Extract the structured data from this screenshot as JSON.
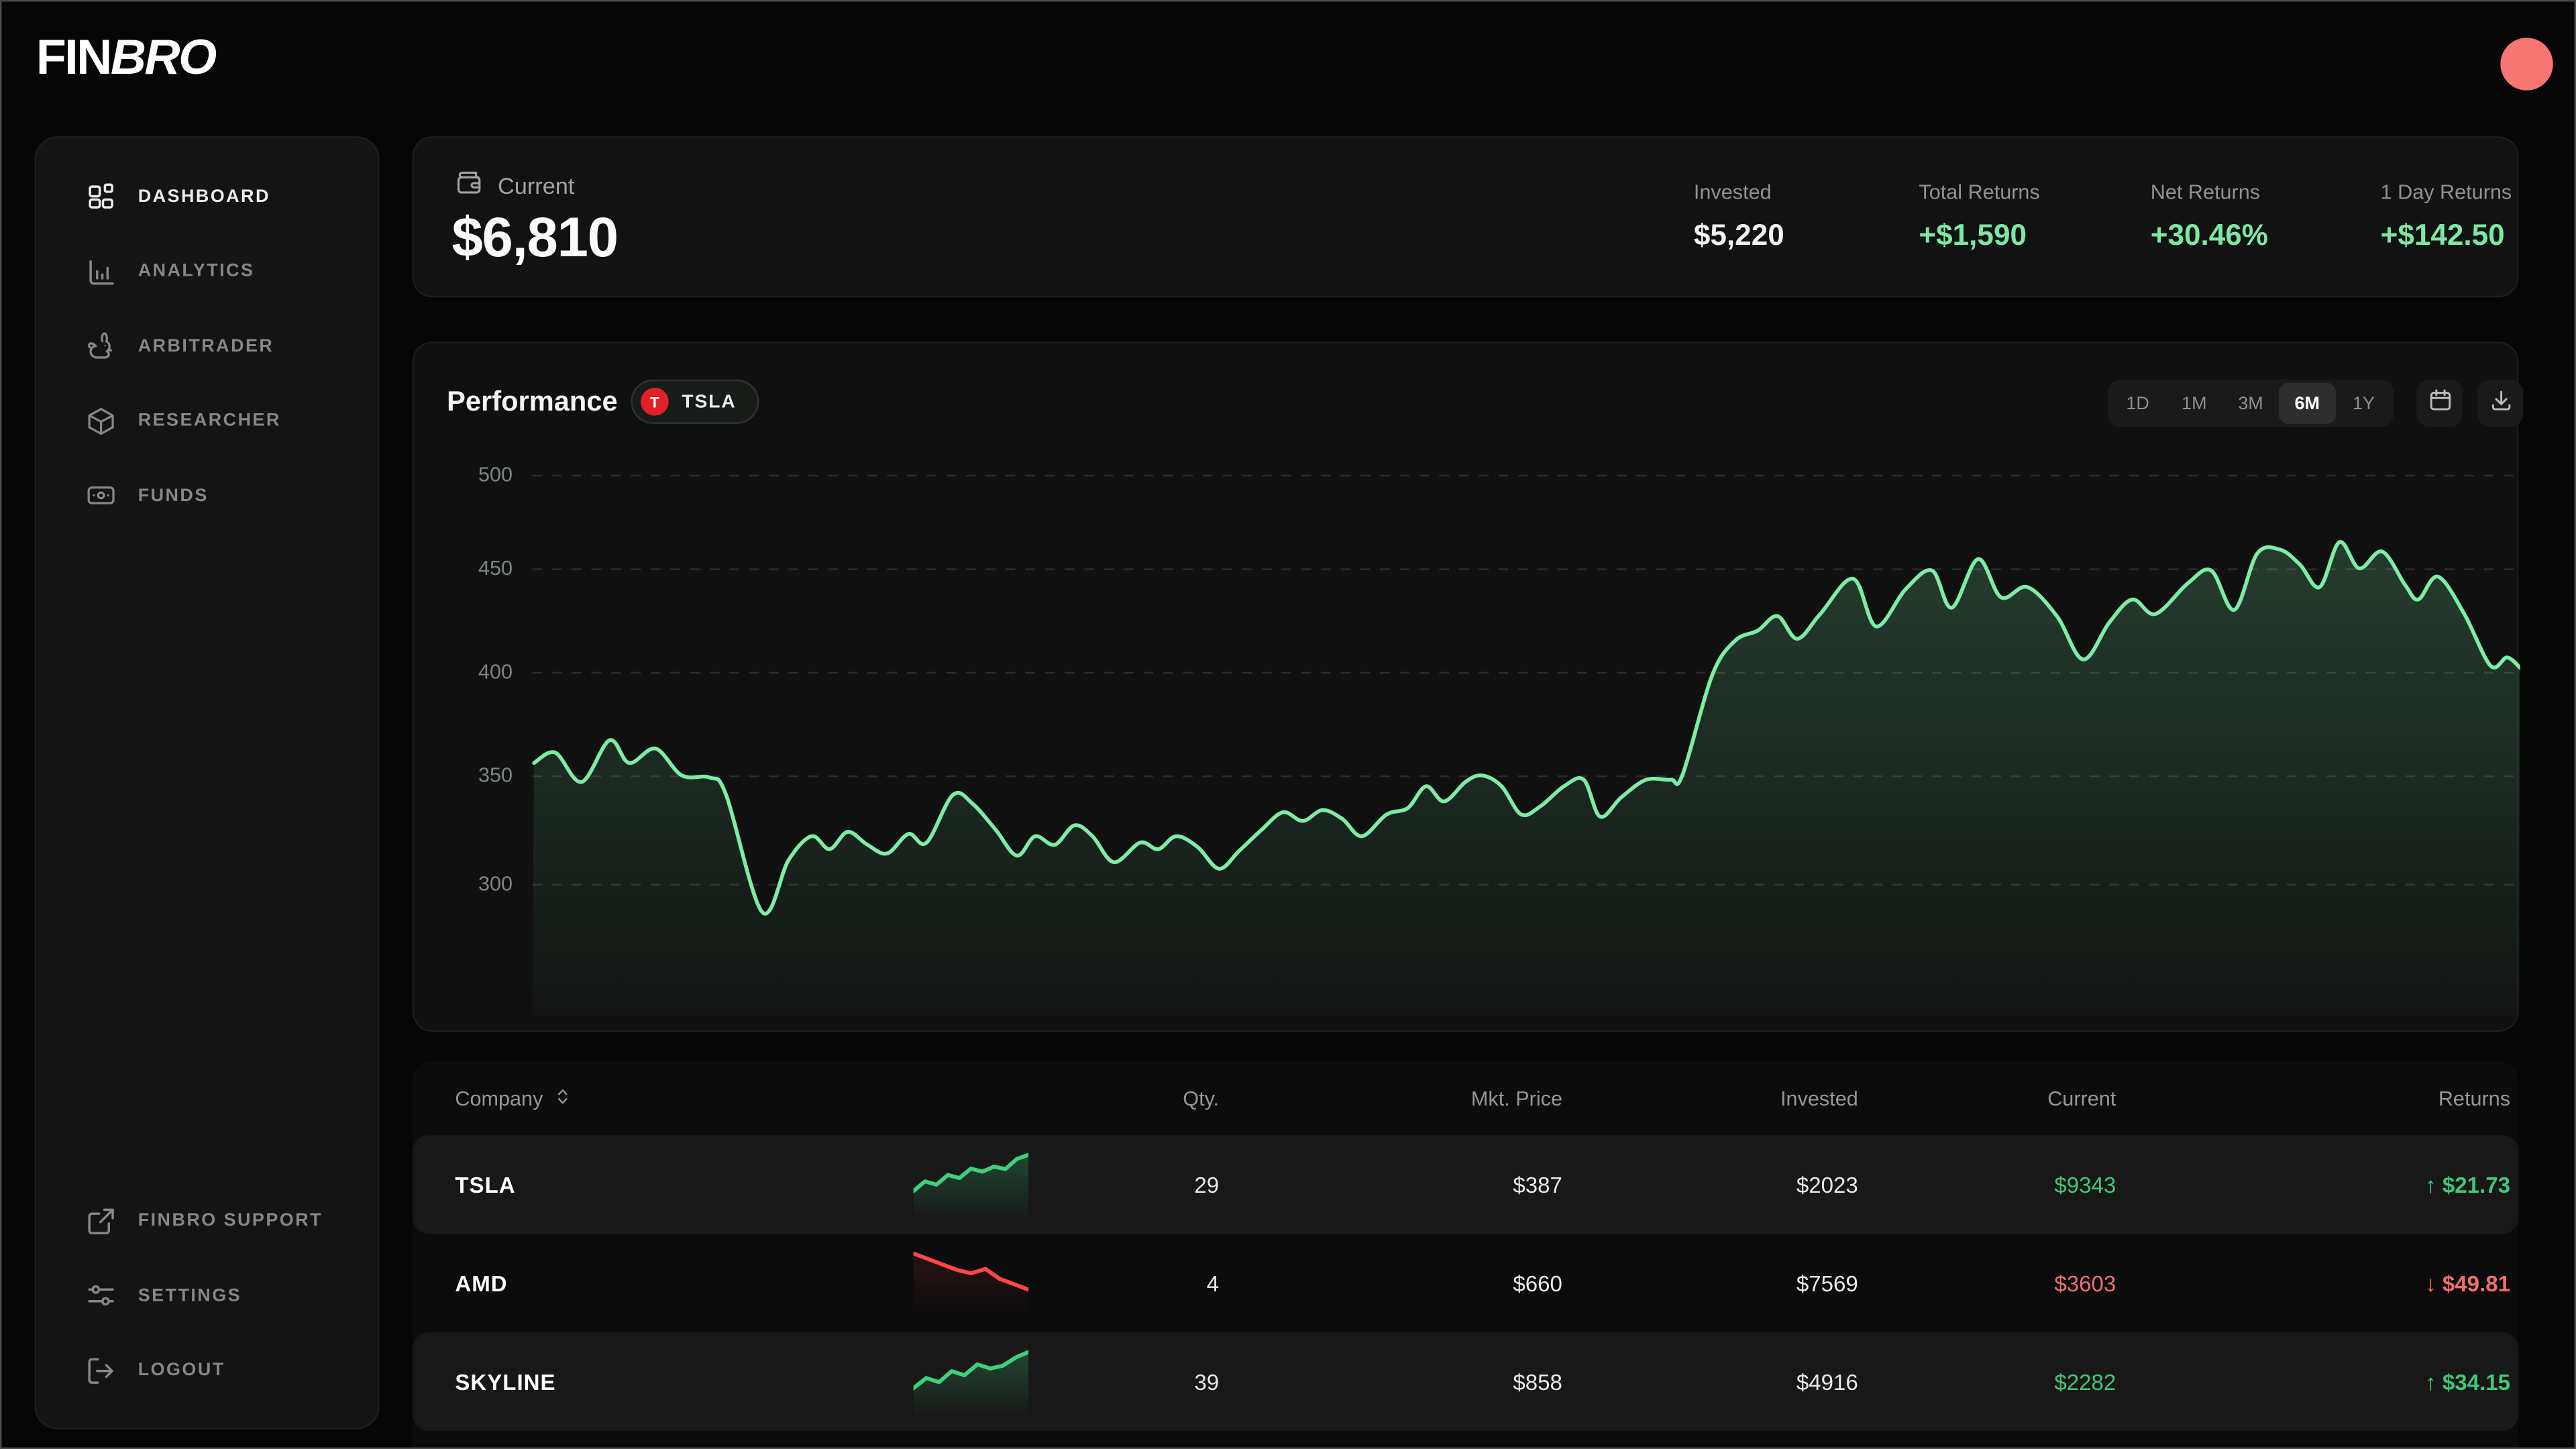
{
  "brand": {
    "logo_fin": "FIN",
    "logo_bro": "BRO"
  },
  "header": {
    "avatar_color": "#f87671"
  },
  "sidebar": {
    "items": [
      {
        "label": "DASHBOARD",
        "icon": "dashboard-icon",
        "active": true
      },
      {
        "label": "ANALYTICS",
        "icon": "analytics-icon",
        "active": false
      },
      {
        "label": "ARBITRADER",
        "icon": "rabbit-icon",
        "active": false
      },
      {
        "label": "RESEARCHER",
        "icon": "cube-icon",
        "active": false
      },
      {
        "label": "FUNDS",
        "icon": "banknote-icon",
        "active": false
      }
    ],
    "footer_items": [
      {
        "label": "FINBRO SUPPORT",
        "icon": "external-link-icon"
      },
      {
        "label": "SETTINGS",
        "icon": "sliders-icon"
      },
      {
        "label": "LOGOUT",
        "icon": "logout-icon"
      }
    ]
  },
  "summary": {
    "current_label": "Current",
    "current_value": "$6,810",
    "stats": [
      {
        "label": "Invested",
        "value": "$5,220",
        "positive": false
      },
      {
        "label": "Total Returns",
        "value": "+$1,590",
        "positive": true
      },
      {
        "label": "Net Returns",
        "value": "+30.46%",
        "positive": true
      },
      {
        "label": "1 Day Returns",
        "value": "+$142.50",
        "positive": true
      }
    ]
  },
  "performance": {
    "title": "Performance",
    "ticker": {
      "letter": "T",
      "symbol": "TSLA"
    },
    "ranges": [
      "1D",
      "1M",
      "3M",
      "6M",
      "1Y"
    ],
    "active_range": "6M"
  },
  "chart_data": {
    "type": "area",
    "title": "Performance",
    "series_name": "TSLA",
    "xlabel": "",
    "ylabel": "",
    "y_ticks": [
      500,
      450,
      400,
      350,
      300
    ],
    "ylim": [
      280,
      510
    ],
    "grid": "dashed-horizontal",
    "legend": "none",
    "line_color": "#7deca6",
    "points": [
      [
        1,
        356
      ],
      [
        14,
        361
      ],
      [
        30,
        347
      ],
      [
        47,
        367
      ],
      [
        59,
        356
      ],
      [
        75,
        363
      ],
      [
        91,
        350
      ],
      [
        108,
        349
      ],
      [
        118,
        341
      ],
      [
        140,
        287
      ],
      [
        156,
        311
      ],
      [
        170,
        322
      ],
      [
        181,
        316
      ],
      [
        192,
        324
      ],
      [
        204,
        318
      ],
      [
        216,
        314
      ],
      [
        229,
        323
      ],
      [
        240,
        319
      ],
      [
        256,
        341
      ],
      [
        268,
        337
      ],
      [
        282,
        325
      ],
      [
        295,
        313
      ],
      [
        306,
        322
      ],
      [
        318,
        318
      ],
      [
        330,
        327
      ],
      [
        341,
        322
      ],
      [
        354,
        310
      ],
      [
        370,
        319
      ],
      [
        381,
        316
      ],
      [
        392,
        322
      ],
      [
        405,
        317
      ],
      [
        418,
        307
      ],
      [
        430,
        315
      ],
      [
        444,
        325
      ],
      [
        457,
        333
      ],
      [
        469,
        329
      ],
      [
        481,
        334
      ],
      [
        493,
        330
      ],
      [
        505,
        322
      ],
      [
        520,
        332
      ],
      [
        533,
        335
      ],
      [
        544,
        345
      ],
      [
        555,
        338
      ],
      [
        568,
        347
      ],
      [
        578,
        350
      ],
      [
        590,
        345
      ],
      [
        602,
        332
      ],
      [
        614,
        336
      ],
      [
        628,
        345
      ],
      [
        640,
        348
      ],
      [
        650,
        331
      ],
      [
        663,
        340
      ],
      [
        678,
        348
      ],
      [
        693,
        348
      ],
      [
        700,
        350
      ],
      [
        718,
        398
      ],
      [
        732,
        415
      ],
      [
        746,
        420
      ],
      [
        758,
        427
      ],
      [
        770,
        416
      ],
      [
        784,
        428
      ],
      [
        804,
        445
      ],
      [
        818,
        422
      ],
      [
        836,
        440
      ],
      [
        852,
        449
      ],
      [
        864,
        431
      ],
      [
        880,
        455
      ],
      [
        894,
        436
      ],
      [
        910,
        441
      ],
      [
        928,
        427
      ],
      [
        944,
        406
      ],
      [
        960,
        424
      ],
      [
        974,
        435
      ],
      [
        988,
        428
      ],
      [
        1008,
        443
      ],
      [
        1022,
        449
      ],
      [
        1036,
        430
      ],
      [
        1050,
        458
      ],
      [
        1064,
        460
      ],
      [
        1076,
        452
      ],
      [
        1088,
        441
      ],
      [
        1100,
        464
      ],
      [
        1112,
        450
      ],
      [
        1126,
        459
      ],
      [
        1140,
        442
      ],
      [
        1148,
        435
      ],
      [
        1160,
        446
      ],
      [
        1176,
        428
      ],
      [
        1192,
        403
      ],
      [
        1202,
        407
      ],
      [
        1210,
        402
      ]
    ]
  },
  "table": {
    "columns": [
      "Company",
      "Qty.",
      "Mkt. Price",
      "Invested",
      "Current",
      "Returns"
    ],
    "up_arrow": "↑",
    "down_arrow": "↓",
    "rows": [
      {
        "company": "TSLA",
        "qty": "29",
        "mkt_price": "$387",
        "invested": "$2023",
        "current": "$9343",
        "returns": "$21.73",
        "direction": "up",
        "spark": [
          2,
          3.5,
          3,
          4.5,
          4,
          5.5,
          5,
          5.8,
          5.4,
          7,
          7.6
        ]
      },
      {
        "company": "AMD",
        "qty": "4",
        "mkt_price": "$660",
        "invested": "$7569",
        "current": "$3603",
        "returns": "$49.81",
        "direction": "down",
        "spark": [
          8,
          7.4,
          6.8,
          6.2,
          5.8,
          6.3,
          5.2,
          4.6,
          4.0
        ]
      },
      {
        "company": "SKYLINE",
        "qty": "39",
        "mkt_price": "$858",
        "invested": "$4916",
        "current": "$2282",
        "returns": "$34.15",
        "direction": "up",
        "spark": [
          1.5,
          3,
          2.4,
          4,
          3.4,
          5,
          4.4,
          4.8,
          6,
          6.8
        ]
      }
    ]
  },
  "colors": {
    "positive_text": "#7de8a6",
    "table_positive": "#42c878",
    "table_negative": "#ef6e6e",
    "spark_green": "#3fd07e",
    "spark_red": "#ff4545",
    "chart_line": "#7deca6",
    "avatar": "#f87671",
    "ticker_dot": "#e02228"
  }
}
